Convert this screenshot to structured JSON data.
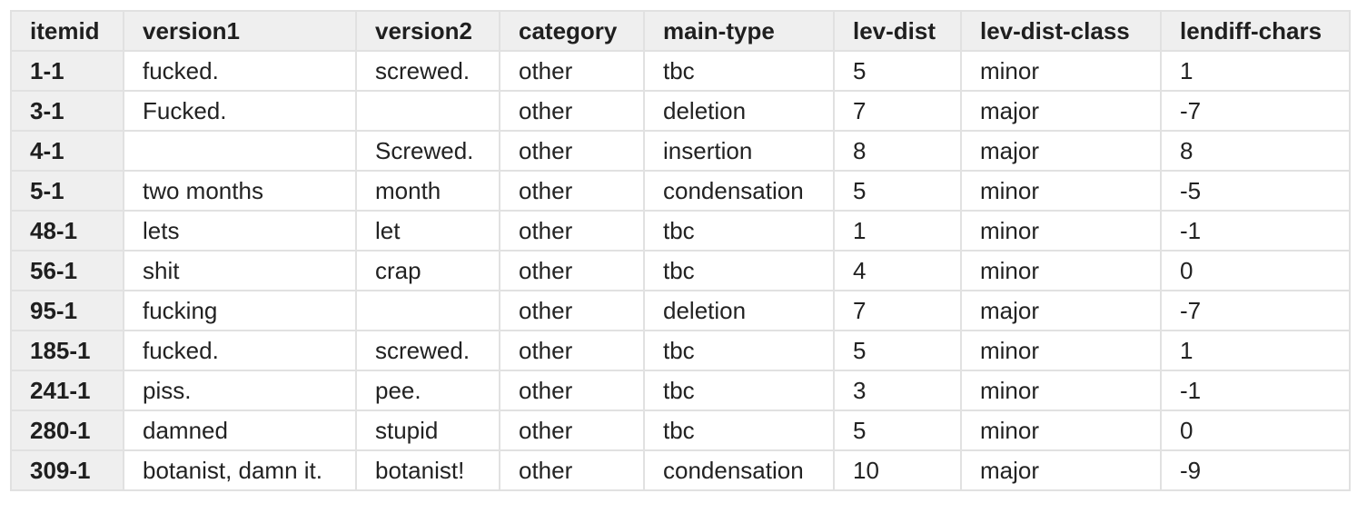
{
  "table": {
    "headers": [
      "itemid",
      "version1",
      "version2",
      "category",
      "main-type",
      "lev-dist",
      "lev-dist-class",
      "lendiff-chars"
    ],
    "rows": [
      [
        "1-1",
        "fucked.",
        "screwed.",
        "other",
        "tbc",
        "5",
        "minor",
        "1"
      ],
      [
        "3-1",
        "Fucked.",
        "",
        "other",
        "deletion",
        "7",
        "major",
        "-7"
      ],
      [
        "4-1",
        "",
        "Screwed.",
        "other",
        "insertion",
        "8",
        "major",
        "8"
      ],
      [
        "5-1",
        "two months",
        "month",
        "other",
        "condensation",
        "5",
        "minor",
        "-5"
      ],
      [
        "48-1",
        "lets",
        "let",
        "other",
        "tbc",
        "1",
        "minor",
        "-1"
      ],
      [
        "56-1",
        "shit",
        "crap",
        "other",
        "tbc",
        "4",
        "minor",
        "0"
      ],
      [
        "95-1",
        "fucking",
        "",
        "other",
        "deletion",
        "7",
        "major",
        "-7"
      ],
      [
        "185-1",
        "fucked.",
        "screwed.",
        "other",
        "tbc",
        "5",
        "minor",
        "1"
      ],
      [
        "241-1",
        "piss.",
        "pee.",
        "other",
        "tbc",
        "3",
        "minor",
        "-1"
      ],
      [
        "280-1",
        "damned",
        "stupid",
        "other",
        "tbc",
        "5",
        "minor",
        "0"
      ],
      [
        "309-1",
        "botanist, damn it.",
        "botanist!",
        "other",
        "condensation",
        "10",
        "major",
        "-9"
      ]
    ]
  }
}
